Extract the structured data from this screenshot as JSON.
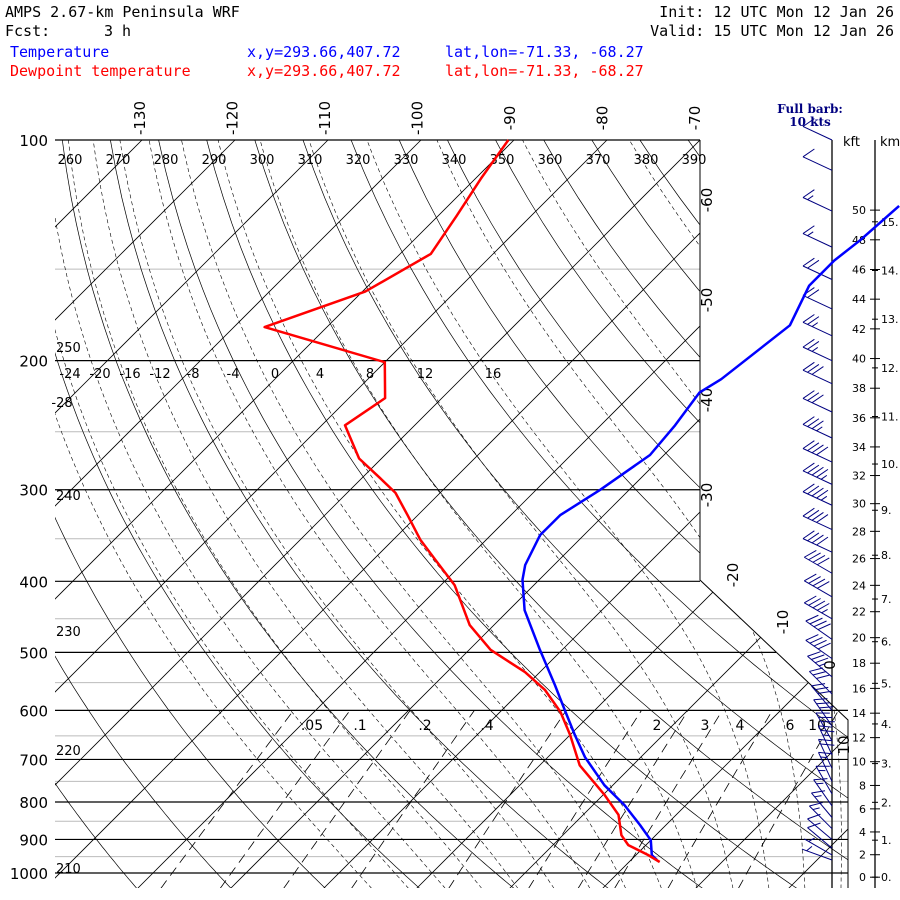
{
  "header": {
    "title": "AMPS 2.67-km Peninsula WRF",
    "fcst_label": "Fcst:",
    "fcst_value": "3 h",
    "init": "Init: 12 UTC Mon 12 Jan 26",
    "valid": "Valid: 15 UTC Mon 12 Jan 26"
  },
  "legend": [
    {
      "name": "Temperature",
      "xy": "x,y=293.66,407.72",
      "latlon": "lat,lon=-71.33, -68.27",
      "color": "#0000ff"
    },
    {
      "name": "Dewpoint temperature",
      "xy": "x,y=293.66,407.72",
      "latlon": "lat,lon=-71.33, -68.27",
      "color": "#ff0000"
    }
  ],
  "barb_key": {
    "line1": "Full barb:",
    "line2": "10 kts",
    "color": "#000080"
  },
  "chart_data": {
    "type": "line",
    "subtype": "skew-T log-p",
    "ylabel": "Pressure (hPa)",
    "ylim": [
      1000,
      100
    ],
    "pressure_ticks": [
      100,
      200,
      300,
      400,
      500,
      600,
      700,
      800,
      900,
      1000
    ],
    "isotherm_labels_top": [
      "-130",
      "-120",
      "-110",
      "-100",
      "-90",
      "-80",
      "-70"
    ],
    "isotherm_labels_right": [
      "-60",
      "-50",
      "-40",
      "-30",
      "-20",
      "-10",
      "0",
      "10"
    ],
    "dry_adiabat_labels_top": [
      "260",
      "270",
      "280",
      "290",
      "300",
      "310",
      "320",
      "330",
      "340",
      "350",
      "360",
      "370",
      "380",
      "390"
    ],
    "dry_adiabat_labels_left": [
      "250",
      "240",
      "230",
      "220",
      "210"
    ],
    "moist_adiabat_labels": [
      "-24",
      "-20",
      "-16",
      "-12",
      "-8",
      "-4",
      "0",
      "4",
      "8",
      "12",
      "16"
    ],
    "moist_extra_label": "-28",
    "mixing_ratio_labels": [
      ".05",
      ".1",
      ".2",
      ".4",
      "2",
      "3",
      "4",
      "6",
      "10"
    ],
    "mixing_ratio_values": [
      0.05,
      0.1,
      0.2,
      0.4,
      1,
      2,
      3,
      4,
      6,
      10
    ],
    "height_axis": {
      "kft_label": "kft",
      "km_label": "km",
      "kft_ticks": [
        "0",
        "2",
        "4",
        "6",
        "8",
        "10",
        "12",
        "14",
        "16",
        "18",
        "20",
        "22",
        "24",
        "26",
        "28",
        "30",
        "32",
        "34",
        "36",
        "38",
        "40",
        "42",
        "44",
        "46",
        "48",
        "50"
      ],
      "km_ticks": [
        "0.",
        "1.",
        "2.",
        "3.",
        "4.",
        "5.",
        "6.",
        "7.",
        "8.",
        "9.",
        "10.",
        "11.",
        "12.",
        "13.",
        "14.",
        "15."
      ]
    },
    "series": [
      {
        "name": "Temperature",
        "color": "#0000ff",
        "p": [
          960,
          945,
          902,
          860,
          808,
          759,
          695,
          648,
          600,
          554,
          496,
          438,
          398,
          380,
          346,
          325,
          300,
          269,
          245,
          221,
          212,
          179,
          158,
          146,
          137,
          123
        ],
        "T": [
          2.8,
          1.7,
          0.0,
          -2.8,
          -6.6,
          -10.9,
          -16.0,
          -19.5,
          -23.2,
          -27.0,
          -32.4,
          -38.3,
          -41.8,
          -43.1,
          -44.7,
          -44.7,
          -43.1,
          -41.5,
          -42.0,
          -42.9,
          -42.0,
          -40.4,
          -42.6,
          -42.6,
          -42.0,
          -41.5
        ]
      },
      {
        "name": "Dewpoint temperature",
        "color": "#ff0000",
        "p": [
          966,
          945,
          916,
          888,
          833,
          783,
          713,
          648,
          603,
          563,
          532,
          496,
          459,
          405,
          374,
          351,
          325,
          303,
          289,
          272,
          245,
          225,
          201,
          180,
          161,
          143,
          127,
          113,
          100
        ],
        "T": [
          3.3,
          1.3,
          -1.9,
          -3.7,
          -6.2,
          -9.8,
          -15.7,
          -20.0,
          -23.5,
          -27.5,
          -31.6,
          -37.7,
          -42.6,
          -48.5,
          -53.3,
          -57.1,
          -61.1,
          -64.8,
          -68.1,
          -72.4,
          -77.5,
          -76.1,
          -80.0,
          -96.7,
          -89.7,
          -86.7,
          -88.0,
          -89.4,
          -90.6
        ]
      }
    ],
    "wind": {
      "p": [
        100,
        110,
        125,
        140,
        155,
        170,
        185,
        200,
        215,
        235,
        255,
        275,
        295,
        315,
        340,
        365,
        390,
        420,
        450,
        480,
        510,
        540,
        570,
        600,
        630,
        660,
        690,
        720,
        750,
        780,
        810,
        840,
        870,
        900,
        925,
        945,
        960
      ],
      "speed_kt": [
        10,
        10,
        15,
        15,
        20,
        20,
        25,
        25,
        30,
        30,
        35,
        40,
        45,
        45,
        40,
        40,
        40,
        40,
        45,
        40,
        40,
        35,
        30,
        30,
        30,
        30,
        25,
        20,
        15,
        15,
        15,
        15,
        15,
        10,
        10,
        5,
        5
      ],
      "dir_deg": [
        295,
        295,
        295,
        295,
        295,
        295,
        295,
        295,
        295,
        295,
        295,
        295,
        295,
        295,
        295,
        295,
        300,
        300,
        300,
        305,
        305,
        310,
        315,
        320,
        325,
        330,
        335,
        335,
        335,
        330,
        325,
        320,
        315,
        310,
        310,
        300,
        290
      ]
    }
  }
}
